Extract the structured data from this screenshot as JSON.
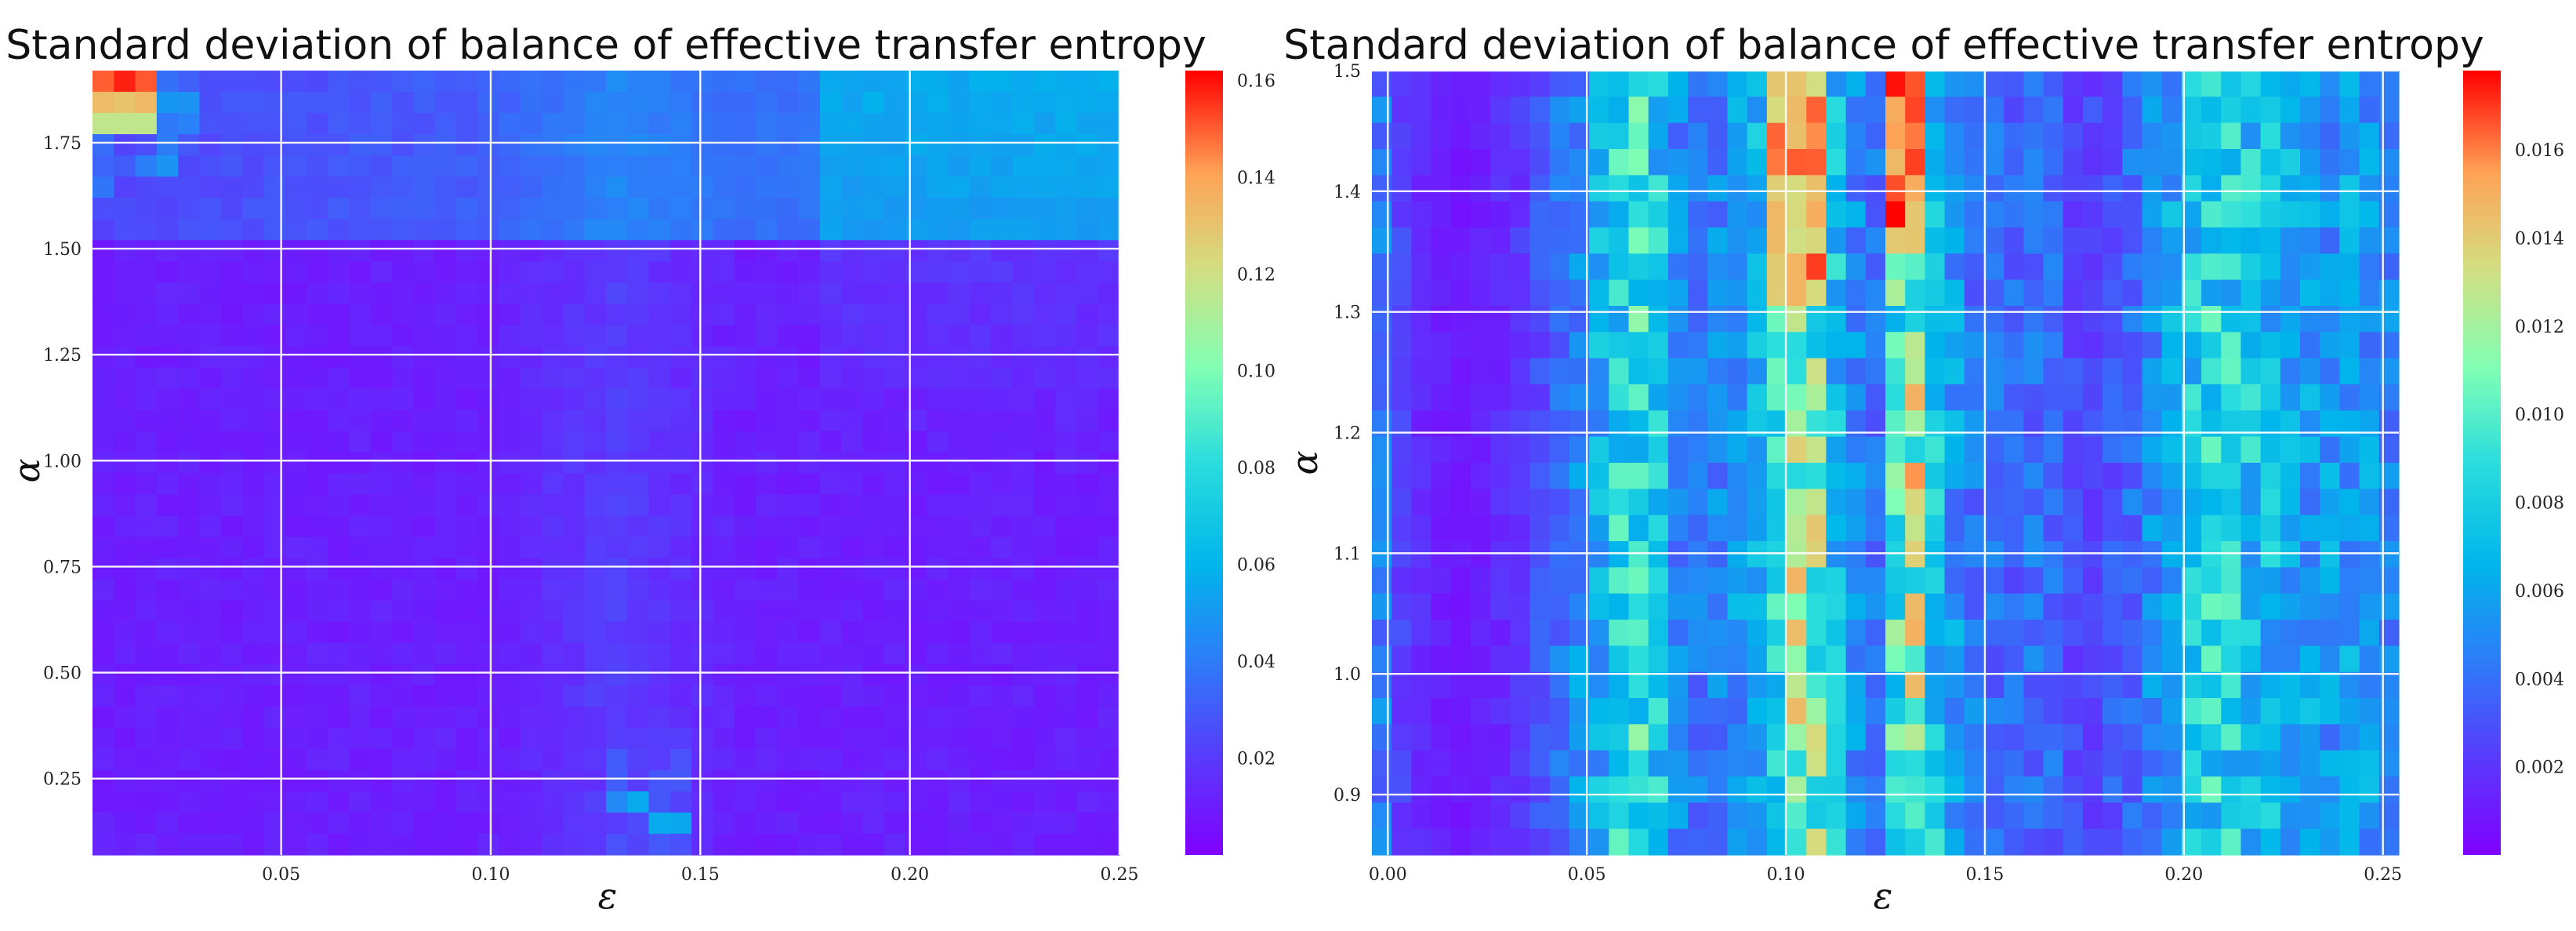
{
  "chart_data": [
    {
      "type": "heatmap",
      "title": "Standard deviation of balance of effective transfer entropy",
      "xlabel": "ε",
      "ylabel": "α",
      "xlim": [
        0.005,
        0.25
      ],
      "ylim": [
        0.07,
        1.92
      ],
      "xticks": [
        0.05,
        0.1,
        0.15,
        0.2,
        0.25
      ],
      "xtick_labels": [
        "0.05",
        "0.10",
        "0.15",
        "0.20",
        "0.25"
      ],
      "yticks": [
        0.25,
        0.5,
        0.75,
        1.0,
        1.25,
        1.5,
        1.75
      ],
      "ytick_labels": [
        "0.25",
        "0.50",
        "0.75",
        "1.00",
        "1.25",
        "1.50",
        "1.75"
      ],
      "colorbar": {
        "min": 0.0,
        "max": 0.162,
        "ticks": [
          0.02,
          0.04,
          0.06,
          0.08,
          0.1,
          0.12,
          0.14,
          0.16
        ],
        "tick_labels": [
          "0.02",
          "0.04",
          "0.06",
          "0.08",
          "0.10",
          "0.12",
          "0.14",
          "0.16"
        ]
      },
      "grid_cols": 48,
      "grid_rows": 37,
      "field": {
        "base": 0.008,
        "rules": [
          {
            "where": "epsilon 0.005-0.02, alpha 1.75-1.92",
            "value_range": [
              0.09,
              0.16
            ]
          },
          {
            "where": "epsilon 0.02-0.03, alpha 1.6-1.8",
            "value_range": [
              0.02,
              0.05
            ]
          },
          {
            "where": "alpha > 1.5, epsilon 0.03-0.25",
            "value_range": [
              0.015,
              0.055
            ]
          },
          {
            "where": "epsilon 0.13-0.15, alpha < 0.35",
            "value_range": [
              0.02,
              0.11
            ]
          },
          {
            "where": "epsilon 0.18-0.25, alpha 1.0-1.9",
            "value_range": [
              0.02,
              0.05
            ]
          }
        ]
      }
    },
    {
      "type": "heatmap",
      "title": "Standard deviation of balance of effective transfer entropy",
      "xlabel": "ε",
      "ylabel": "α",
      "xlim": [
        -0.004,
        0.254
      ],
      "ylim": [
        0.85,
        1.5
      ],
      "xticks": [
        0.0,
        0.05,
        0.1,
        0.15,
        0.2,
        0.25
      ],
      "xtick_labels": [
        "0.00",
        "0.05",
        "0.10",
        "0.15",
        "0.20",
        "0.25"
      ],
      "yticks": [
        0.9,
        1.0,
        1.1,
        1.2,
        1.3,
        1.4,
        1.5
      ],
      "ytick_labels": [
        "0.9",
        "1.0",
        "1.1",
        "1.2",
        "1.3",
        "1.4",
        "1.5"
      ],
      "colorbar": {
        "min": 0.0,
        "max": 0.0178,
        "ticks": [
          0.002,
          0.004,
          0.006,
          0.008,
          0.01,
          0.012,
          0.014,
          0.016
        ],
        "tick_labels": [
          "0.002",
          "0.004",
          "0.006",
          "0.008",
          "0.010",
          "0.012",
          "0.014",
          "0.016"
        ]
      },
      "grid_cols": 52,
      "grid_rows": 30,
      "column_profile": {
        "epsilon": [
          0.0,
          0.01,
          0.02,
          0.035,
          0.05,
          0.06,
          0.065,
          0.075,
          0.085,
          0.095,
          0.105,
          0.115,
          0.125,
          0.13,
          0.135,
          0.145,
          0.155,
          0.165,
          0.175,
          0.185,
          0.195,
          0.205,
          0.215,
          0.225,
          0.235,
          0.245,
          0.25
        ],
        "value": [
          0.0035,
          0.0015,
          0.001,
          0.0025,
          0.006,
          0.0095,
          0.01,
          0.0045,
          0.0055,
          0.0075,
          0.014,
          0.006,
          0.004,
          0.017,
          0.009,
          0.005,
          0.004,
          0.0045,
          0.0025,
          0.004,
          0.006,
          0.009,
          0.0085,
          0.007,
          0.006,
          0.0065,
          0.005
        ]
      }
    }
  ]
}
